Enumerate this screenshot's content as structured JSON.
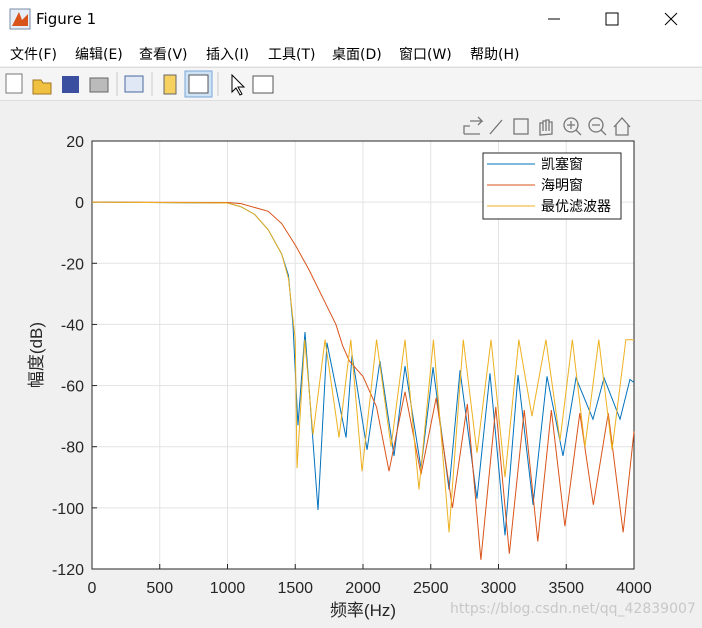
{
  "window": {
    "title": "Figure 1",
    "menu": [
      "文件(F)",
      "编辑(E)",
      "查看(V)",
      "插入(I)",
      "工具(T)",
      "桌面(D)",
      "窗口(W)",
      "帮助(H)"
    ]
  },
  "watermark": "https://blog.csdn.net/qq_42839007",
  "chart_data": {
    "type": "line",
    "xlabel": "频率(Hz)",
    "ylabel": "幅度(dB)",
    "xlim": [
      0,
      4000
    ],
    "ylim": [
      -120,
      20
    ],
    "xticks": [
      0,
      500,
      1000,
      1500,
      2000,
      2500,
      3000,
      3500,
      4000
    ],
    "yticks": [
      -120,
      -100,
      -80,
      -60,
      -40,
      -20,
      0,
      20
    ],
    "grid": true,
    "legend": "upper right",
    "series": [
      {
        "name": "凯塞窗",
        "color": "#0072bd",
        "x": [
          0,
          1000,
          1100,
          1200,
          1300,
          1400,
          1450,
          1483,
          1520,
          1572,
          1668,
          1734,
          1875,
          1919,
          2030,
          2125,
          2229,
          2310,
          2428,
          2517,
          2635,
          2716,
          2841,
          2937,
          3048,
          3144,
          3255,
          3358,
          3476,
          3572,
          3697,
          3779,
          3897,
          3970,
          4000
        ],
        "values": [
          0,
          -0.3,
          -1.5,
          -4,
          -9,
          -17,
          -24,
          -40,
          -73,
          -42.5,
          -100.7,
          -46,
          -77,
          -50,
          -81,
          -52,
          -83,
          -53.6,
          -87,
          -54,
          -94,
          -55,
          -97,
          -56,
          -109,
          -56.5,
          -99,
          -57,
          -83,
          -57.5,
          -71,
          -57.5,
          -71,
          -58,
          -59
        ]
      },
      {
        "name": "海明窗",
        "color": "#d95319",
        "x": [
          0,
          1000,
          1100,
          1300,
          1400,
          1500,
          1600,
          1700,
          1800,
          1850,
          1900,
          2000,
          2100,
          2192,
          2310,
          2428,
          2540,
          2660,
          2770,
          2870,
          2980,
          3080,
          3190,
          3290,
          3390,
          3490,
          3600,
          3700,
          3810,
          3920,
          4000
        ],
        "values": [
          0,
          -0.1,
          -0.5,
          -3,
          -7,
          -14,
          -22,
          -31,
          -40,
          -47,
          -52,
          -57,
          -67,
          -88,
          -62,
          -89,
          -64,
          -100,
          -66,
          -117,
          -67,
          -115,
          -68,
          -111,
          -68,
          -106,
          -69,
          -99,
          -69,
          -108,
          -75
        ]
      },
      {
        "name": "最优滤波器",
        "color": "#edb120",
        "x": [
          0,
          1000,
          1100,
          1200,
          1300,
          1400,
          1450,
          1500,
          1513,
          1570,
          1631,
          1720,
          1823,
          1910,
          1993,
          2100,
          2207,
          2310,
          2413,
          2520,
          2635,
          2740,
          2841,
          2945,
          3048,
          3150,
          3247,
          3350,
          3454,
          3545,
          3638,
          3740,
          3838,
          3940,
          4000
        ],
        "values": [
          0,
          -0.3,
          -1.5,
          -4,
          -9,
          -17,
          -25,
          -45,
          -87,
          -45,
          -76,
          -45,
          -77,
          -45,
          -88,
          -45,
          -80,
          -45,
          -94,
          -45,
          -108,
          -45,
          -82,
          -45,
          -90,
          -45,
          -70,
          -45,
          -78,
          -45,
          -80,
          -45,
          -81,
          -45,
          -45
        ]
      }
    ]
  }
}
